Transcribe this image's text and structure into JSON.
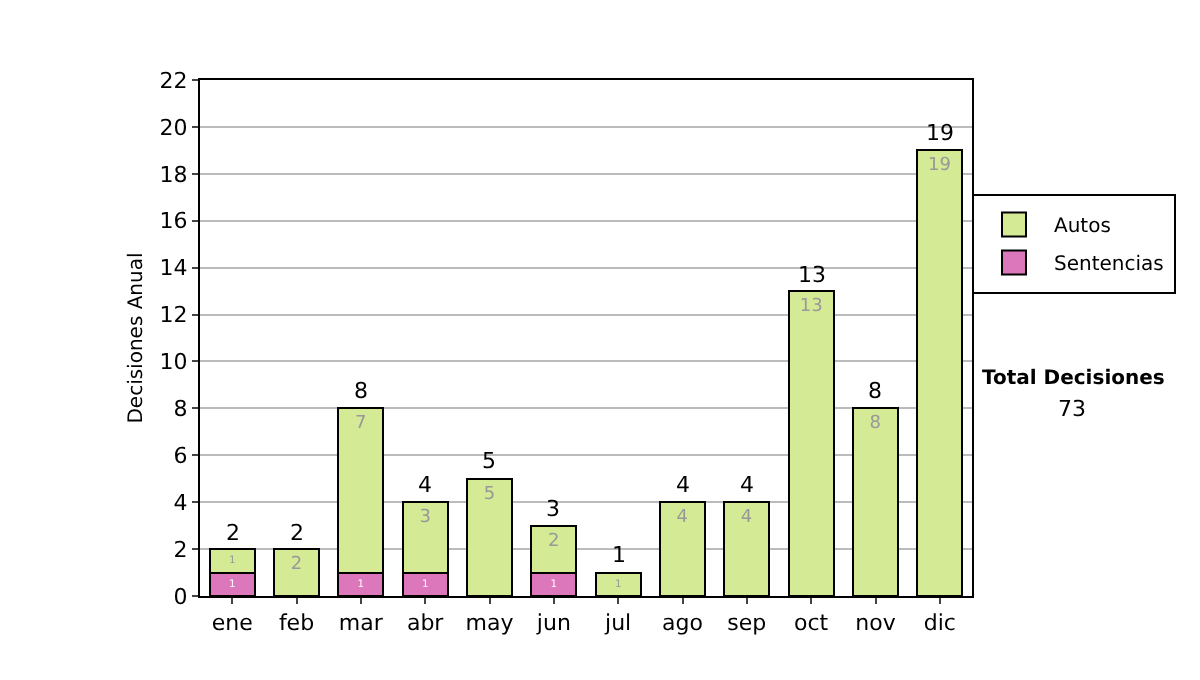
{
  "chart_data": {
    "type": "bar",
    "stacked": true,
    "ylabel": "Decisiones Anual",
    "categories": [
      "ene",
      "feb",
      "mar",
      "abr",
      "may",
      "jun",
      "jul",
      "ago",
      "sep",
      "oct",
      "nov",
      "dic"
    ],
    "series": [
      {
        "name": "Sentencias",
        "color": "#dd77bb",
        "values": [
          1,
          0,
          1,
          1,
          0,
          1,
          0,
          0,
          0,
          0,
          0,
          0
        ],
        "value_labels": [
          "1",
          null,
          "1",
          "1",
          null,
          "1",
          null,
          null,
          null,
          null,
          null,
          null
        ]
      },
      {
        "name": "Autos",
        "color": "#d4ea94",
        "values": [
          1,
          2,
          7,
          3,
          5,
          2,
          1,
          4,
          4,
          13,
          8,
          19
        ],
        "value_labels": [
          "1",
          "2",
          "7",
          "3",
          "5",
          "2",
          "1",
          "4",
          "4",
          "13",
          "8",
          "19"
        ]
      }
    ],
    "totals": [
      "2",
      "2",
      "8",
      "4",
      "5",
      "3",
      "1",
      "4",
      "4",
      "13",
      "8",
      "19"
    ],
    "ylim": [
      0,
      22
    ],
    "yticks": [
      0,
      2,
      4,
      6,
      8,
      10,
      12,
      14,
      16,
      18,
      20,
      22
    ],
    "grid": "y",
    "legend": "right",
    "annotations": [
      "Total Decisiones",
      "73"
    ]
  }
}
